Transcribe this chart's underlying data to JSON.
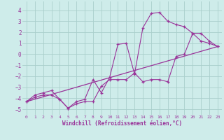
{
  "xlabel": "Windchill (Refroidissement éolien,°C)",
  "background_color": "#ceecea",
  "grid_color": "#aacfcc",
  "line_color": "#993399",
  "xlim": [
    -0.5,
    23.5
  ],
  "ylim": [
    -5.5,
    4.8
  ],
  "yticks": [
    -5,
    -4,
    -3,
    -2,
    -1,
    0,
    1,
    2,
    3,
    4
  ],
  "xticks": [
    0,
    1,
    2,
    3,
    4,
    5,
    6,
    7,
    8,
    9,
    10,
    11,
    12,
    13,
    14,
    15,
    16,
    17,
    18,
    19,
    20,
    21,
    22,
    23
  ],
  "line1_x": [
    0,
    1,
    2,
    3,
    4,
    5,
    6,
    7,
    8,
    9,
    10,
    11,
    12,
    13,
    14,
    15,
    16,
    17,
    18,
    19,
    20,
    21,
    22,
    23
  ],
  "line1_y": [
    -4.3,
    -3.9,
    -3.7,
    -3.7,
    -4.1,
    -4.9,
    -4.5,
    -4.3,
    -4.3,
    -2.9,
    -2.3,
    -2.3,
    -2.3,
    -1.7,
    -2.5,
    -2.3,
    -2.3,
    -2.5,
    -0.2,
    0.0,
    1.9,
    1.2,
    1.0,
    0.7
  ],
  "line2_x": [
    0,
    1,
    2,
    3,
    4,
    5,
    6,
    7,
    8,
    9,
    10,
    11,
    12,
    13,
    14,
    15,
    16,
    17,
    18,
    19,
    20,
    21,
    22,
    23
  ],
  "line2_y": [
    -4.3,
    -3.7,
    -3.5,
    -3.3,
    -4.1,
    -4.9,
    -4.3,
    -4.1,
    -2.3,
    -3.5,
    -2.1,
    0.9,
    1.0,
    -1.8,
    2.4,
    3.7,
    3.8,
    3.0,
    2.7,
    2.5,
    1.9,
    1.9,
    1.2,
    0.7
  ],
  "line3_x": [
    0,
    23
  ],
  "line3_y": [
    -4.3,
    0.7
  ]
}
